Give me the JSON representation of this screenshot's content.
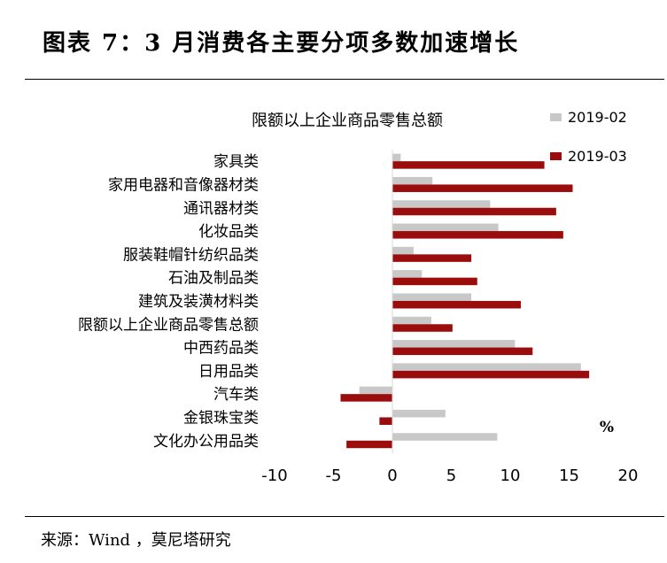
{
  "figure_title": "图表 7：3 月消费各主要分项多数加速增长",
  "source": "来源：Wind ，莫尼塔研究",
  "colors": {
    "s1": "#c8c8c8",
    "s2": "#9b0d0d"
  },
  "chart_data": {
    "type": "bar",
    "orientation": "horizontal",
    "title": "限额以上企业商品零售总额",
    "xlabel": "",
    "ylabel": "",
    "unit": "%",
    "xlim": [
      -10,
      20
    ],
    "ticks": [
      -10,
      -5,
      0,
      5,
      10,
      15,
      20
    ],
    "grid": false,
    "legend_position": "top-right",
    "categories": [
      "家具类",
      "家用电器和音像器材类",
      "通讯器材类",
      "化妆品类",
      "服装鞋帽针纺织品类",
      "石油及制品类",
      "建筑及装潢材料类",
      "限额以上企业商品零售总额",
      "中西药品类",
      "日用品类",
      "汽车类",
      "金银珠宝类",
      "文化办公用品类"
    ],
    "series": [
      {
        "name": "2019-02",
        "values": [
          0.7,
          3.4,
          8.3,
          9.0,
          1.8,
          2.5,
          6.7,
          3.3,
          10.4,
          16.0,
          -2.8,
          4.5,
          8.9
        ]
      },
      {
        "name": "2019-03",
        "values": [
          12.9,
          15.3,
          13.9,
          14.5,
          6.7,
          7.2,
          10.9,
          5.1,
          11.9,
          16.7,
          -4.4,
          -1.1,
          -3.9
        ]
      }
    ]
  }
}
